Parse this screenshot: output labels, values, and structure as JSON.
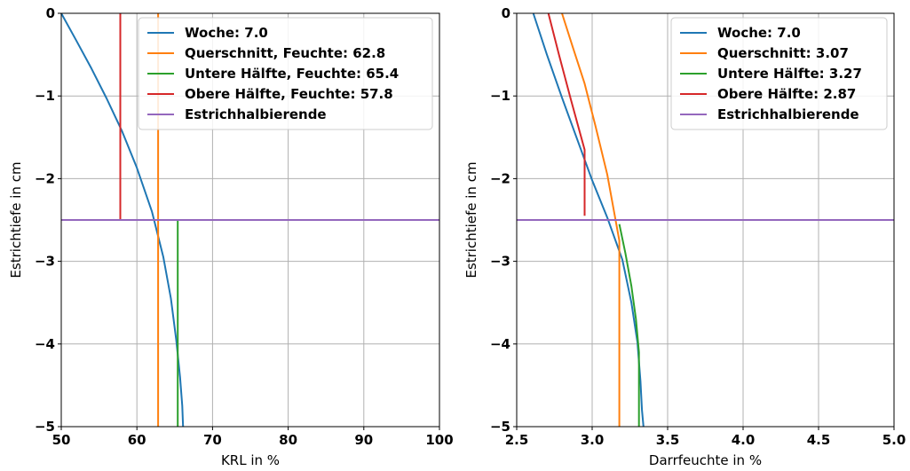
{
  "chart_data": [
    {
      "type": "line",
      "xlabel": "KRL in %",
      "ylabel": "Estrichtiefe in cm",
      "xlim": [
        50,
        100
      ],
      "ylim": [
        -5,
        0
      ],
      "xticks": [
        50,
        60,
        70,
        80,
        90,
        100
      ],
      "xtick_labels": [
        "50",
        "60",
        "70",
        "80",
        "90",
        "100"
      ],
      "yticks": [
        0,
        -1,
        -2,
        -3,
        -4,
        -5
      ],
      "ytick_labels": [
        "0",
        "−1",
        "−2",
        "−3",
        "−4",
        "−5"
      ],
      "grid": true,
      "legend_position": "upper right",
      "series": [
        {
          "name": "Woche: 7.0",
          "color": "#1f77b4",
          "x": [
            50.0,
            52.0,
            54.0,
            56.0,
            58.0,
            60.0,
            62.0,
            63.5,
            64.5,
            65.2,
            65.7,
            66.0,
            66.1
          ],
          "y": [
            0.0,
            -0.33,
            -0.67,
            -1.03,
            -1.42,
            -1.87,
            -2.4,
            -2.95,
            -3.45,
            -3.95,
            -4.4,
            -4.75,
            -5.0
          ]
        },
        {
          "name": "Querschnitt, Feuchte: 62.8",
          "color": "#ff7f0e",
          "x": [
            62.8,
            62.8
          ],
          "y": [
            0.0,
            -5.0
          ]
        },
        {
          "name": "Untere Hälfte, Feuchte: 65.4",
          "color": "#2ca02c",
          "x": [
            65.4,
            65.4
          ],
          "y": [
            -2.5,
            -5.0
          ]
        },
        {
          "name": "Obere Hälfte, Feuchte: 57.8",
          "color": "#d62728",
          "x": [
            57.8,
            57.8
          ],
          "y": [
            0.0,
            -2.5
          ]
        },
        {
          "name": "Estrichhalbierende",
          "color": "#9467bd",
          "x": [
            50,
            100
          ],
          "y": [
            -2.5,
            -2.5
          ]
        }
      ]
    },
    {
      "type": "line",
      "xlabel": "Darrfeuchte in %",
      "ylabel": "Estrichtiefe in cm",
      "xlim": [
        2.5,
        5.0
      ],
      "ylim": [
        -5,
        0
      ],
      "xticks": [
        2.5,
        3.0,
        3.5,
        4.0,
        4.5,
        5.0
      ],
      "xtick_labels": [
        "2.5",
        "3.0",
        "3.5",
        "4.0",
        "4.5",
        "5.0"
      ],
      "yticks": [
        0,
        -1,
        -2,
        -3,
        -4,
        -5
      ],
      "ytick_labels": [
        "0",
        "−1",
        "−2",
        "−3",
        "−4",
        "−5"
      ],
      "grid": true,
      "legend_position": "upper right",
      "series": [
        {
          "name": "Woche: 7.0",
          "color": "#1f77b4",
          "x": [
            2.61,
            2.7,
            2.8,
            2.9,
            3.0,
            3.1,
            3.2,
            3.26,
            3.3,
            3.32,
            3.33,
            3.34
          ],
          "y": [
            0.0,
            -0.5,
            -1.02,
            -1.52,
            -2.02,
            -2.47,
            -2.98,
            -3.5,
            -3.98,
            -4.45,
            -4.8,
            -5.0
          ]
        },
        {
          "name": "Querschnitt: 3.07",
          "color": "#ff7f0e",
          "x": [
            2.8,
            2.87,
            2.95,
            3.02,
            3.1,
            3.18,
            3.18
          ],
          "y": [
            0.0,
            -0.4,
            -0.85,
            -1.35,
            -1.95,
            -2.75,
            -5.0
          ]
        },
        {
          "name": "Untere Hälfte: 3.27",
          "color": "#2ca02c",
          "x": [
            3.18,
            3.22,
            3.26,
            3.29,
            3.31,
            3.31
          ],
          "y": [
            -2.55,
            -2.9,
            -3.3,
            -3.7,
            -4.1,
            -5.0
          ]
        },
        {
          "name": "Obere Hälfte: 2.87",
          "color": "#d62728",
          "x": [
            2.71,
            2.78,
            2.86,
            2.95,
            2.95
          ],
          "y": [
            0.0,
            -0.5,
            -1.05,
            -1.65,
            -2.45
          ]
        },
        {
          "name": "Estrichhalbierende",
          "color": "#9467bd",
          "x": [
            2.5,
            5.0
          ],
          "y": [
            -2.5,
            -2.5
          ]
        }
      ]
    }
  ]
}
